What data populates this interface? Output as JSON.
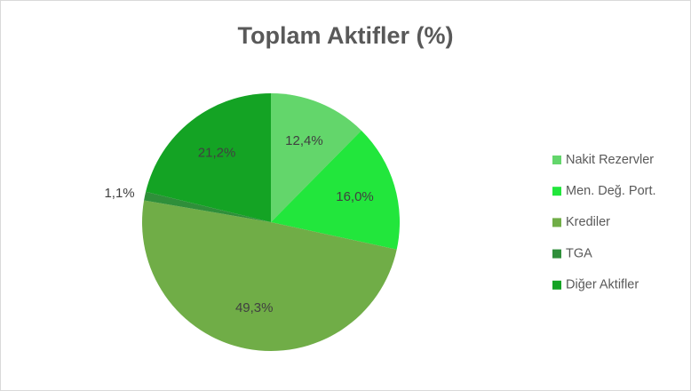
{
  "chart_data": {
    "type": "pie",
    "title": "Toplam Aktifler (%)",
    "categories": [
      "Nakit Rezervler",
      "Men. Değ. Port.",
      "Krediler",
      "TGA",
      "Diğer Aktifler"
    ],
    "values": [
      12.4,
      16.0,
      49.3,
      1.1,
      21.2
    ],
    "value_labels": [
      "12,4%",
      "16,0%",
      "49,3%",
      "1,1%",
      "21,2%"
    ],
    "colors": [
      "#63d66b",
      "#22e63c",
      "#70ad47",
      "#2f8f3a",
      "#14a324"
    ],
    "legend": "right"
  }
}
